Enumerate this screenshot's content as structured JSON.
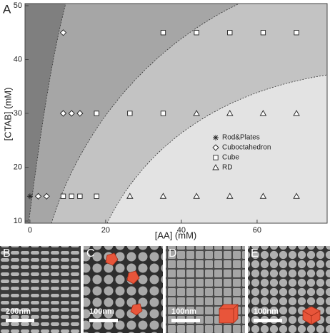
{
  "panel_label": "A",
  "chart_data": {
    "type": "scatter",
    "xlabel": "[AA] (mM)",
    "ylabel": "[CTAB] (mM)",
    "xlim": [
      -1.3,
      78.5
    ],
    "ylim": [
      9.6,
      50.4
    ],
    "xticks": [
      0,
      20,
      40,
      60
    ],
    "yticks": [
      10,
      20,
      30,
      40,
      50
    ],
    "series": [
      {
        "name": "Rod&Plates",
        "marker": "asterisk",
        "color": "#222222",
        "x": [
          0
        ],
        "values": [
          14.6
        ]
      },
      {
        "name": "Cuboctahedron",
        "marker": "diamond",
        "color": "#222222",
        "x": [
          2.2,
          4.4,
          8.8,
          11,
          13.2,
          8.8
        ],
        "values": [
          14.6,
          14.6,
          30,
          30,
          30,
          45
        ]
      },
      {
        "name": "Cube",
        "marker": "square",
        "color": "#222222",
        "x": [
          8.8,
          11,
          13.2,
          17.6,
          17.6,
          26.4,
          35.2,
          35.2,
          44,
          52.8,
          61.6,
          70.4
        ],
        "values": [
          14.6,
          14.6,
          14.6,
          14.6,
          30,
          30,
          30,
          45,
          45,
          45,
          45,
          45
        ]
      },
      {
        "name": "RD",
        "marker": "triangle",
        "color": "#222222",
        "x": [
          26.4,
          35.2,
          44,
          52.8,
          61.6,
          70.4,
          44,
          52.8,
          61.6,
          70.4
        ],
        "values": [
          14.6,
          14.6,
          14.6,
          14.6,
          14.6,
          14.6,
          30,
          30,
          30,
          30
        ]
      }
    ]
  },
  "panels": [
    {
      "label": "B",
      "scale_bar": "200nm"
    },
    {
      "label": "C",
      "scale_bar": "100nm"
    },
    {
      "label": "D",
      "scale_bar": "100nm"
    },
    {
      "label": "E",
      "scale_bar": "100nm"
    }
  ]
}
